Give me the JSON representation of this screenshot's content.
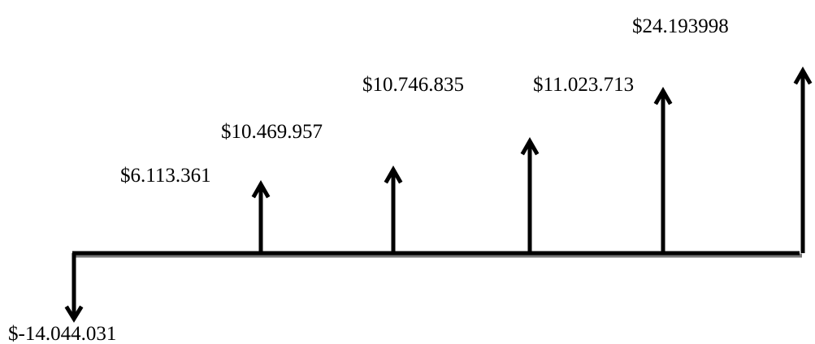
{
  "flows": [
    {
      "label": "$-14.044.031"
    },
    {
      "label": "$6.113.361"
    },
    {
      "label": "$10.469.957"
    },
    {
      "label": "$10.746.835"
    },
    {
      "label": "$11.023.713"
    },
    {
      "label": "$24.193998"
    }
  ]
}
